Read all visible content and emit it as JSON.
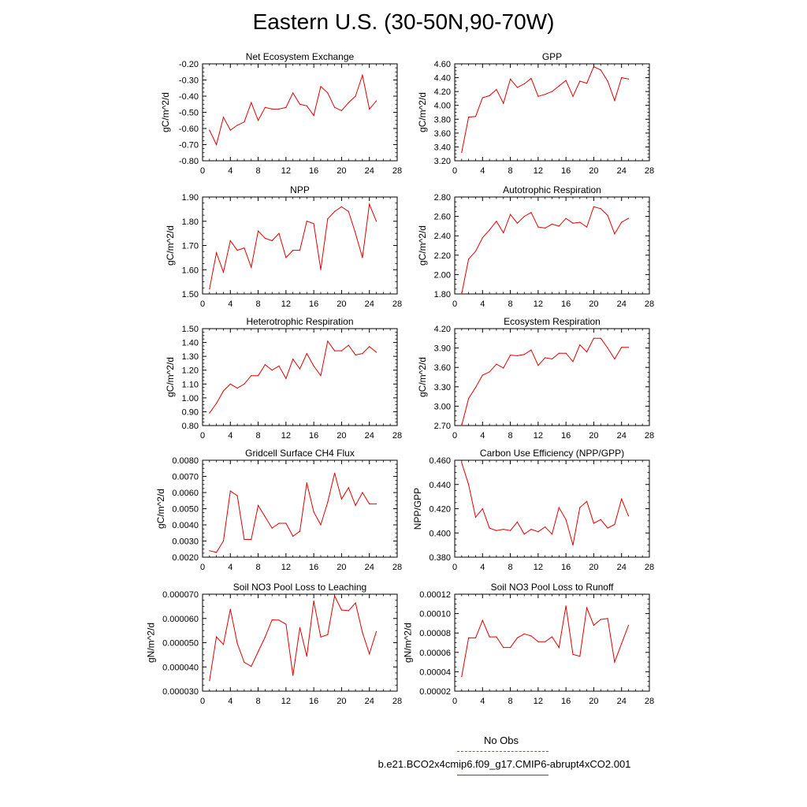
{
  "title": "Eastern U.S. (30-50N,90-70W)",
  "colors": {
    "series": "#e00000",
    "obs": "#5a5ad6",
    "axis": "#000000"
  },
  "legend": {
    "obs_label": "No Obs",
    "run_label": "b.e21.BCO2x4cmip6.f09_g17.CMIP6-abrupt4xCO2.001"
  },
  "chart_data": [
    {
      "type": "line",
      "title": "Net Ecosystem Exchange",
      "ylabel": "gC/m^2/d",
      "xlim": [
        0,
        28
      ],
      "xticks": [
        "0",
        "4",
        "8",
        "12",
        "16",
        "20",
        "24",
        "28"
      ],
      "ylim": [
        -0.8,
        -0.2
      ],
      "yticks": [
        "-0.80",
        "-0.70",
        "-0.60",
        "-0.50",
        "-0.40",
        "-0.30",
        "-0.20"
      ],
      "x": [
        1,
        2,
        3,
        4,
        5,
        6,
        7,
        8,
        9,
        10,
        11,
        12,
        13,
        14,
        15,
        16,
        17,
        18,
        19,
        20,
        21,
        22,
        23,
        24,
        25
      ],
      "values": [
        -0.61,
        -0.7,
        -0.53,
        -0.61,
        -0.58,
        -0.56,
        -0.44,
        -0.55,
        -0.47,
        -0.48,
        -0.48,
        -0.47,
        -0.38,
        -0.45,
        -0.46,
        -0.52,
        -0.34,
        -0.38,
        -0.47,
        -0.49,
        -0.44,
        -0.4,
        -0.27,
        -0.48,
        -0.43
      ]
    },
    {
      "type": "line",
      "title": "GPP",
      "ylabel": "gC/m^2/d",
      "xlim": [
        0,
        28
      ],
      "xticks": [
        "0",
        "4",
        "8",
        "12",
        "16",
        "20",
        "24",
        "28"
      ],
      "ylim": [
        3.2,
        4.6
      ],
      "yticks": [
        "3.20",
        "3.40",
        "3.60",
        "3.80",
        "4.00",
        "4.20",
        "4.40",
        "4.60"
      ],
      "x": [
        1,
        2,
        3,
        4,
        5,
        6,
        7,
        8,
        9,
        10,
        11,
        12,
        13,
        14,
        15,
        16,
        17,
        18,
        19,
        20,
        21,
        22,
        23,
        24,
        25
      ],
      "values": [
        3.32,
        3.83,
        3.84,
        4.11,
        4.14,
        4.23,
        4.03,
        4.38,
        4.26,
        4.31,
        4.39,
        4.13,
        4.16,
        4.2,
        4.28,
        4.36,
        4.13,
        4.35,
        4.32,
        4.56,
        4.51,
        4.35,
        4.07,
        4.4,
        4.38
      ]
    },
    {
      "type": "line",
      "title": "NPP",
      "ylabel": "gC/m^2/d",
      "xlim": [
        0,
        28
      ],
      "xticks": [
        "0",
        "4",
        "8",
        "12",
        "16",
        "20",
        "24",
        "28"
      ],
      "ylim": [
        1.5,
        1.9
      ],
      "yticks": [
        "1.50",
        "1.60",
        "1.70",
        "1.80",
        "1.90"
      ],
      "x": [
        1,
        2,
        3,
        4,
        5,
        6,
        7,
        8,
        9,
        10,
        11,
        12,
        13,
        14,
        15,
        16,
        17,
        18,
        19,
        20,
        21,
        22,
        23,
        24,
        25
      ],
      "values": [
        1.52,
        1.67,
        1.59,
        1.72,
        1.68,
        1.69,
        1.61,
        1.76,
        1.73,
        1.72,
        1.75,
        1.65,
        1.68,
        1.68,
        1.8,
        1.79,
        1.6,
        1.81,
        1.84,
        1.86,
        1.84,
        1.75,
        1.65,
        1.87,
        1.8
      ]
    },
    {
      "type": "line",
      "title": "Autotrophic Respiration",
      "ylabel": "gC/m^2/d",
      "xlim": [
        0,
        28
      ],
      "xticks": [
        "0",
        "4",
        "8",
        "12",
        "16",
        "20",
        "24",
        "28"
      ],
      "ylim": [
        1.8,
        2.8
      ],
      "yticks": [
        "1.80",
        "2.00",
        "2.20",
        "2.40",
        "2.60",
        "2.80"
      ],
      "x": [
        1,
        2,
        3,
        4,
        5,
        6,
        7,
        8,
        9,
        10,
        11,
        12,
        13,
        14,
        15,
        16,
        17,
        18,
        19,
        20,
        21,
        22,
        23,
        24,
        25
      ],
      "values": [
        1.8,
        2.16,
        2.24,
        2.38,
        2.46,
        2.55,
        2.43,
        2.62,
        2.53,
        2.6,
        2.64,
        2.49,
        2.48,
        2.52,
        2.5,
        2.58,
        2.53,
        2.54,
        2.49,
        2.7,
        2.68,
        2.61,
        2.42,
        2.54,
        2.58
      ]
    },
    {
      "type": "line",
      "title": "Heterotrophic Respiration",
      "ylabel": "gC/m^2/d",
      "xlim": [
        0,
        28
      ],
      "xticks": [
        "0",
        "4",
        "8",
        "12",
        "16",
        "20",
        "24",
        "28"
      ],
      "ylim": [
        0.8,
        1.5
      ],
      "yticks": [
        "0.80",
        "0.90",
        "1.00",
        "1.10",
        "1.20",
        "1.30",
        "1.40",
        "1.50"
      ],
      "x": [
        1,
        2,
        3,
        4,
        5,
        6,
        7,
        8,
        9,
        10,
        11,
        12,
        13,
        14,
        15,
        16,
        17,
        18,
        19,
        20,
        21,
        22,
        23,
        24,
        25
      ],
      "values": [
        0.89,
        0.96,
        1.05,
        1.1,
        1.07,
        1.1,
        1.16,
        1.16,
        1.24,
        1.2,
        1.23,
        1.14,
        1.28,
        1.21,
        1.32,
        1.23,
        1.16,
        1.41,
        1.34,
        1.34,
        1.38,
        1.31,
        1.32,
        1.37,
        1.33
      ]
    },
    {
      "type": "line",
      "title": "Ecosystem Respiration",
      "ylabel": "gC/m^2/d",
      "xlim": [
        0,
        28
      ],
      "xticks": [
        "0",
        "4",
        "8",
        "12",
        "16",
        "20",
        "24",
        "28"
      ],
      "ylim": [
        2.7,
        4.2
      ],
      "yticks": [
        "2.70",
        "3.00",
        "3.30",
        "3.60",
        "3.90",
        "4.20"
      ],
      "x": [
        1,
        2,
        3,
        4,
        5,
        6,
        7,
        8,
        9,
        10,
        11,
        12,
        13,
        14,
        15,
        16,
        17,
        18,
        19,
        20,
        21,
        22,
        23,
        24,
        25
      ],
      "values": [
        2.7,
        3.12,
        3.29,
        3.48,
        3.53,
        3.65,
        3.59,
        3.79,
        3.78,
        3.8,
        3.87,
        3.63,
        3.75,
        3.73,
        3.82,
        3.82,
        3.69,
        3.95,
        3.84,
        4.05,
        4.05,
        3.9,
        3.73,
        3.91,
        3.91
      ]
    },
    {
      "type": "line",
      "title": "Gridcell Surface CH4 Flux",
      "ylabel": "gC/m^2/d",
      "xlim": [
        0,
        28
      ],
      "xticks": [
        "0",
        "4",
        "8",
        "12",
        "16",
        "20",
        "24",
        "28"
      ],
      "ylim": [
        0.002,
        0.008
      ],
      "yticks": [
        "0.0020",
        "0.0030",
        "0.0040",
        "0.0050",
        "0.0060",
        "0.0070",
        "0.0080"
      ],
      "x": [
        1,
        2,
        3,
        4,
        5,
        6,
        7,
        8,
        9,
        10,
        11,
        12,
        13,
        14,
        15,
        16,
        17,
        18,
        19,
        20,
        21,
        22,
        23,
        24,
        25
      ],
      "values": [
        0.0024,
        0.0023,
        0.003,
        0.0061,
        0.0058,
        0.0031,
        0.0031,
        0.0052,
        0.0045,
        0.0038,
        0.0041,
        0.0041,
        0.0033,
        0.0036,
        0.0066,
        0.0048,
        0.004,
        0.0054,
        0.0072,
        0.0056,
        0.0063,
        0.0052,
        0.006,
        0.0053,
        0.0053
      ]
    },
    {
      "type": "line",
      "title": "Carbon Use Efficiency (NPP/GPP)",
      "ylabel": "NPP/GPP",
      "xlim": [
        0,
        28
      ],
      "xticks": [
        "0",
        "4",
        "8",
        "12",
        "16",
        "20",
        "24",
        "28"
      ],
      "ylim": [
        0.38,
        0.46
      ],
      "yticks": [
        "0.380",
        "0.400",
        "0.420",
        "0.440",
        "0.460"
      ],
      "x": [
        1,
        2,
        3,
        4,
        5,
        6,
        7,
        8,
        9,
        10,
        11,
        12,
        13,
        14,
        15,
        16,
        17,
        18,
        19,
        20,
        21,
        22,
        23,
        24,
        25
      ],
      "values": [
        0.458,
        0.44,
        0.413,
        0.42,
        0.404,
        0.402,
        0.403,
        0.402,
        0.409,
        0.399,
        0.403,
        0.401,
        0.405,
        0.399,
        0.421,
        0.411,
        0.39,
        0.421,
        0.426,
        0.408,
        0.411,
        0.404,
        0.407,
        0.428,
        0.414
      ]
    },
    {
      "type": "line",
      "title": "Soil NO3 Pool Loss to Leaching",
      "ylabel": "gN/m^2/d",
      "xlim": [
        0,
        28
      ],
      "xticks": [
        "0",
        "4",
        "8",
        "12",
        "16",
        "20",
        "24",
        "28"
      ],
      "ylim": [
        3e-05,
        7e-05
      ],
      "yticks": [
        "0.000030",
        "0.000040",
        "0.000050",
        "0.000060",
        "0.000070"
      ],
      "x": [
        1,
        2,
        3,
        4,
        5,
        6,
        7,
        8,
        9,
        10,
        11,
        12,
        13,
        14,
        15,
        16,
        17,
        18,
        19,
        20,
        21,
        22,
        23,
        24,
        25
      ],
      "values": [
        3.43e-05,
        5.24e-05,
        4.93e-05,
        6.38e-05,
        4.97e-05,
        4.19e-05,
        4.02e-05,
        4.63e-05,
        5.23e-05,
        5.94e-05,
        5.93e-05,
        5.76e-05,
        3.65e-05,
        5.62e-05,
        4.44e-05,
        6.72e-05,
        5.23e-05,
        5.33e-05,
        6.93e-05,
        6.35e-05,
        6.32e-05,
        6.64e-05,
        5.42e-05,
        4.54e-05,
        5.46e-05
      ]
    },
    {
      "type": "line",
      "title": "Soil NO3 Pool Loss to Runoff",
      "ylabel": "gN/m^2/d",
      "xlim": [
        0,
        28
      ],
      "xticks": [
        "0",
        "4",
        "8",
        "12",
        "16",
        "20",
        "24",
        "28"
      ],
      "ylim": [
        2e-05,
        0.00012
      ],
      "yticks": [
        "0.00002",
        "0.00004",
        "0.00006",
        "0.00008",
        "0.00010",
        "0.00012"
      ],
      "x": [
        1,
        2,
        3,
        4,
        5,
        6,
        7,
        8,
        9,
        10,
        11,
        12,
        13,
        14,
        15,
        16,
        17,
        18,
        19,
        20,
        21,
        22,
        23,
        24,
        25
      ],
      "values": [
        3.5e-05,
        7.5e-05,
        7.5e-05,
        9.3e-05,
        7.6e-05,
        7.6e-05,
        6.5e-05,
        6.5e-05,
        7.5e-05,
        7.9e-05,
        7.7e-05,
        7.1e-05,
        7.1e-05,
        7.6e-05,
        6.5e-05,
        0.000108,
        5.8e-05,
        5.6e-05,
        0.000106,
        8.8e-05,
        9.4e-05,
        9.5e-05,
        5e-05,
        6.9e-05,
        8.8e-05
      ]
    }
  ]
}
